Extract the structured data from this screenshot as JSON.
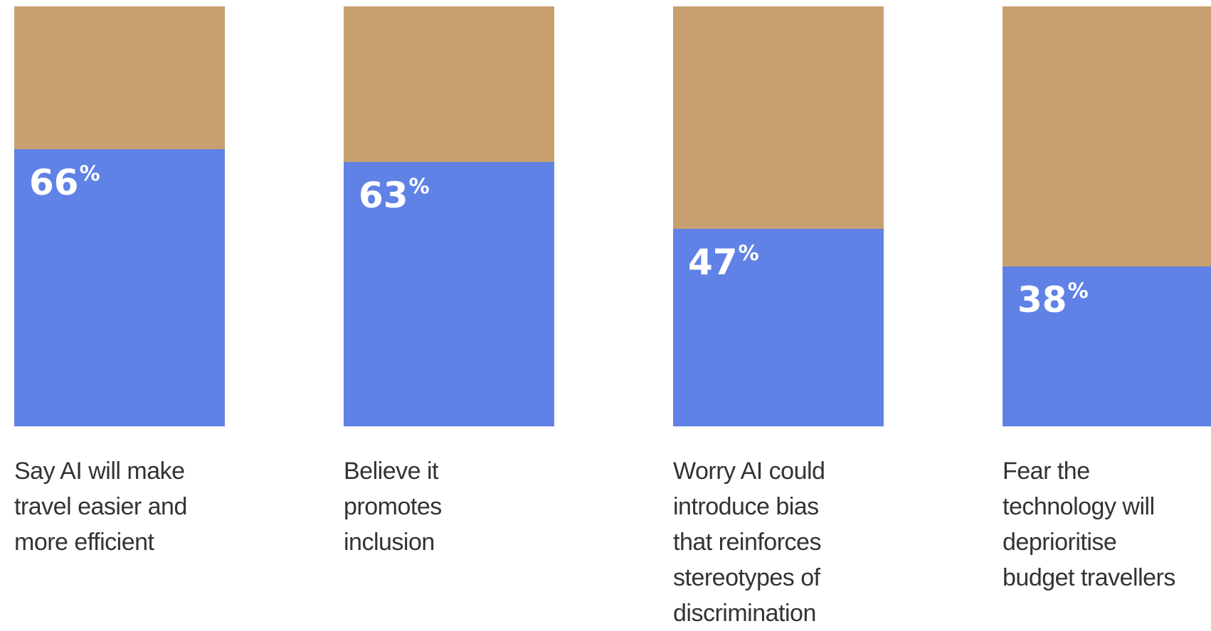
{
  "chart_data": {
    "type": "bar",
    "categories": [
      "Say AI will make travel easier and more efficient",
      "Believe it promotes inclusion",
      "Worry AI could introduce bias that reinforces stereotypes of discrimination",
      "Fear the technology will deprioritise budget travellers"
    ],
    "values": [
      66,
      63,
      47,
      38
    ],
    "unit": "%",
    "ylim": [
      0,
      100
    ],
    "labels": [
      [
        "Say AI will make",
        "travel easier and",
        "more efficient"
      ],
      [
        "Believe it",
        "promotes",
        "inclusion"
      ],
      [
        "Worry AI could",
        "introduce bias",
        "that reinforces",
        "stereotypes of",
        "discrimination"
      ],
      [
        "Fear the",
        "technology will",
        "deprioritise",
        "budget travellers"
      ]
    ],
    "colors": {
      "value": "#6082e6",
      "remainder": "#c8a070",
      "value_text": "#ffffff",
      "label_text": "#333333"
    },
    "grid": false,
    "legend": "none"
  }
}
